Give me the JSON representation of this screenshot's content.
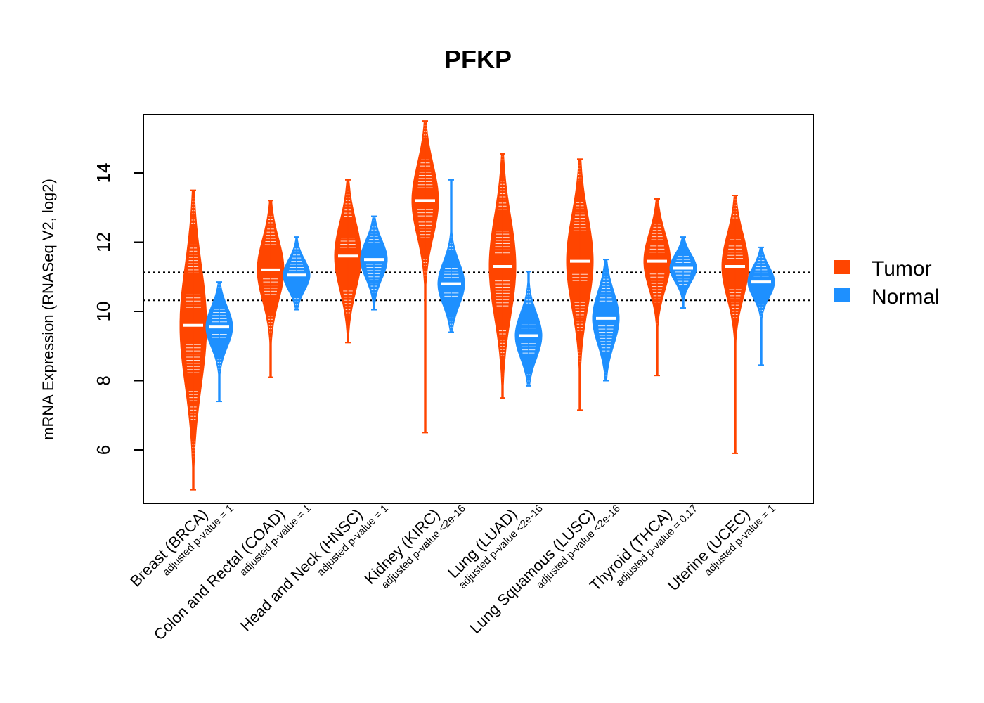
{
  "chart_data": {
    "type": "violin",
    "title": "PFKP",
    "xlabel": "",
    "ylabel": "mRNA Expression (RNASeq V2, log2)",
    "ylim": [
      4.5,
      15.7
    ],
    "yticks": [
      6,
      8,
      10,
      12,
      14
    ],
    "reference_lines": [
      11.13,
      10.32
    ],
    "legend_position": "right",
    "series": [
      {
        "name": "Tumor",
        "color": "#FF4500"
      },
      {
        "name": "Normal",
        "color": "#1E90FF"
      }
    ],
    "categories": [
      {
        "label": "Breast (BRCA)",
        "pvalue": "adjusted p-value = 1",
        "tumor": {
          "min": 4.85,
          "max": 13.5,
          "median": 9.6
        },
        "normal": {
          "min": 7.4,
          "max": 10.85,
          "median": 9.55
        }
      },
      {
        "label": "Colon and Rectal (COAD)",
        "pvalue": "adjusted p-value = 1",
        "tumor": {
          "min": 8.1,
          "max": 13.2,
          "median": 11.2
        },
        "normal": {
          "min": 10.05,
          "max": 12.15,
          "median": 11.05
        }
      },
      {
        "label": "Head and Neck (HNSC)",
        "pvalue": "adjusted p-value = 1",
        "tumor": {
          "min": 9.1,
          "max": 13.8,
          "median": 11.6
        },
        "normal": {
          "min": 10.05,
          "max": 12.75,
          "median": 11.5
        }
      },
      {
        "label": "Kidney (KIRC)",
        "pvalue": "adjusted p-value <2e-16",
        "tumor": {
          "min": 6.5,
          "max": 15.5,
          "median": 13.2
        },
        "normal": {
          "min": 9.4,
          "max": 13.8,
          "median": 10.8
        }
      },
      {
        "label": "Lung (LUAD)",
        "pvalue": "adjusted p-value <2e-16",
        "tumor": {
          "min": 7.5,
          "max": 14.55,
          "median": 11.3
        },
        "normal": {
          "min": 7.85,
          "max": 11.15,
          "median": 9.3
        }
      },
      {
        "label": "Lung Squamous (LUSC)",
        "pvalue": "adjusted p-value <2e-16",
        "tumor": {
          "min": 7.15,
          "max": 14.4,
          "median": 11.45
        },
        "normal": {
          "min": 8.0,
          "max": 11.5,
          "median": 9.8
        }
      },
      {
        "label": "Thyroid (THCA)",
        "pvalue": "adjusted p-value = 0.17",
        "tumor": {
          "min": 8.15,
          "max": 13.25,
          "median": 11.45
        },
        "normal": {
          "min": 10.1,
          "max": 12.15,
          "median": 11.25
        }
      },
      {
        "label": "Uterine (UCEC)",
        "pvalue": "adjusted p-value = 1",
        "tumor": {
          "min": 5.9,
          "max": 13.35,
          "median": 11.3
        },
        "normal": {
          "min": 8.45,
          "max": 11.85,
          "median": 10.85
        }
      }
    ]
  }
}
